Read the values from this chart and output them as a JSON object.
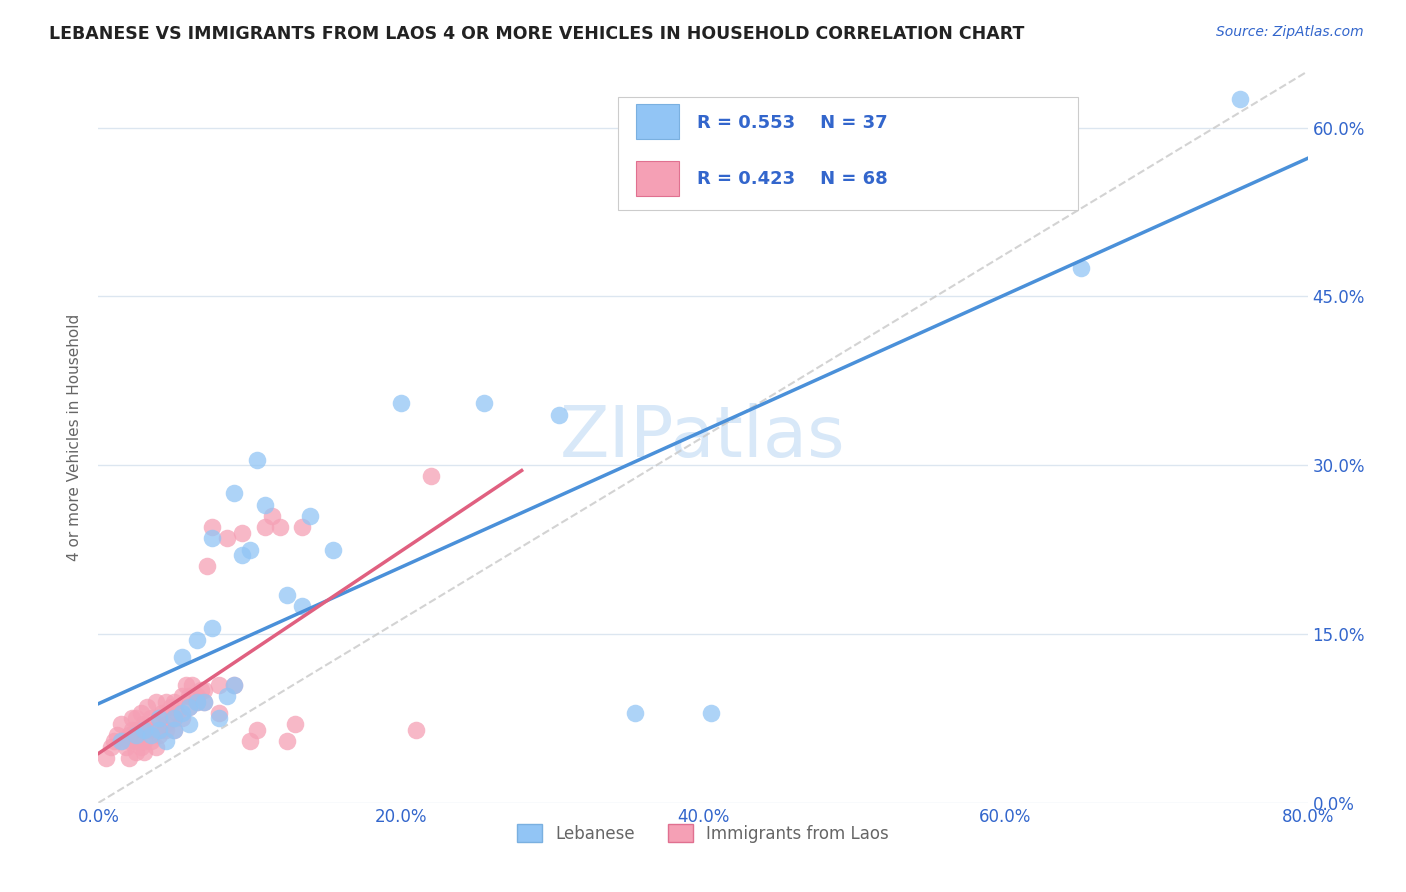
{
  "title": "LEBANESE VS IMMIGRANTS FROM LAOS 4 OR MORE VEHICLES IN HOUSEHOLD CORRELATION CHART",
  "source": "Source: ZipAtlas.com",
  "xlim": [
    0.0,
    0.8
  ],
  "ylim": [
    0.0,
    0.65
  ],
  "legend_label1": "Lebanese",
  "legend_label2": "Immigrants from Laos",
  "r1": 0.553,
  "n1": 37,
  "r2": 0.423,
  "n2": 68,
  "color1": "#92c5f5",
  "color2": "#f5a0b5",
  "trendline1_color": "#4a90d9",
  "trendline2_color": "#e06080",
  "trendline_ref_color": "#c8c8c8",
  "watermark_color": "#d8e8f8",
  "background_color": "#ffffff",
  "grid_color": "#dce6f0",
  "text_color": "#3366cc",
  "ylabel_color": "#666666",
  "title_color": "#222222",
  "scatter1_x": [
    0.015,
    0.025,
    0.03,
    0.035,
    0.04,
    0.04,
    0.045,
    0.05,
    0.05,
    0.055,
    0.055,
    0.06,
    0.06,
    0.065,
    0.065,
    0.07,
    0.075,
    0.075,
    0.08,
    0.085,
    0.09,
    0.09,
    0.095,
    0.1,
    0.105,
    0.11,
    0.125,
    0.135,
    0.14,
    0.155,
    0.2,
    0.255,
    0.305,
    0.355,
    0.405,
    0.65,
    0.755
  ],
  "scatter1_y": [
    0.055,
    0.06,
    0.065,
    0.06,
    0.065,
    0.075,
    0.055,
    0.065,
    0.075,
    0.08,
    0.13,
    0.07,
    0.085,
    0.09,
    0.145,
    0.09,
    0.155,
    0.235,
    0.075,
    0.095,
    0.105,
    0.275,
    0.22,
    0.225,
    0.305,
    0.265,
    0.185,
    0.175,
    0.255,
    0.225,
    0.355,
    0.355,
    0.345,
    0.08,
    0.08,
    0.475,
    0.625
  ],
  "scatter2_x": [
    0.005,
    0.008,
    0.01,
    0.012,
    0.015,
    0.015,
    0.018,
    0.02,
    0.02,
    0.02,
    0.022,
    0.022,
    0.025,
    0.025,
    0.025,
    0.025,
    0.028,
    0.028,
    0.03,
    0.03,
    0.03,
    0.03,
    0.032,
    0.035,
    0.035,
    0.035,
    0.038,
    0.038,
    0.04,
    0.04,
    0.04,
    0.042,
    0.045,
    0.045,
    0.045,
    0.048,
    0.05,
    0.05,
    0.05,
    0.052,
    0.055,
    0.055,
    0.058,
    0.06,
    0.06,
    0.062,
    0.065,
    0.065,
    0.068,
    0.07,
    0.07,
    0.072,
    0.075,
    0.08,
    0.08,
    0.085,
    0.09,
    0.095,
    0.1,
    0.105,
    0.11,
    0.115,
    0.12,
    0.125,
    0.13,
    0.135,
    0.21,
    0.22
  ],
  "scatter2_y": [
    0.04,
    0.05,
    0.055,
    0.06,
    0.055,
    0.07,
    0.05,
    0.04,
    0.055,
    0.06,
    0.065,
    0.075,
    0.045,
    0.055,
    0.065,
    0.075,
    0.05,
    0.08,
    0.045,
    0.055,
    0.065,
    0.07,
    0.085,
    0.055,
    0.065,
    0.075,
    0.05,
    0.09,
    0.06,
    0.065,
    0.075,
    0.08,
    0.065,
    0.07,
    0.09,
    0.085,
    0.065,
    0.075,
    0.09,
    0.08,
    0.075,
    0.095,
    0.105,
    0.085,
    0.095,
    0.105,
    0.09,
    0.095,
    0.1,
    0.09,
    0.1,
    0.21,
    0.245,
    0.08,
    0.105,
    0.235,
    0.105,
    0.24,
    0.055,
    0.065,
    0.245,
    0.255,
    0.245,
    0.055,
    0.07,
    0.245,
    0.065,
    0.29
  ]
}
